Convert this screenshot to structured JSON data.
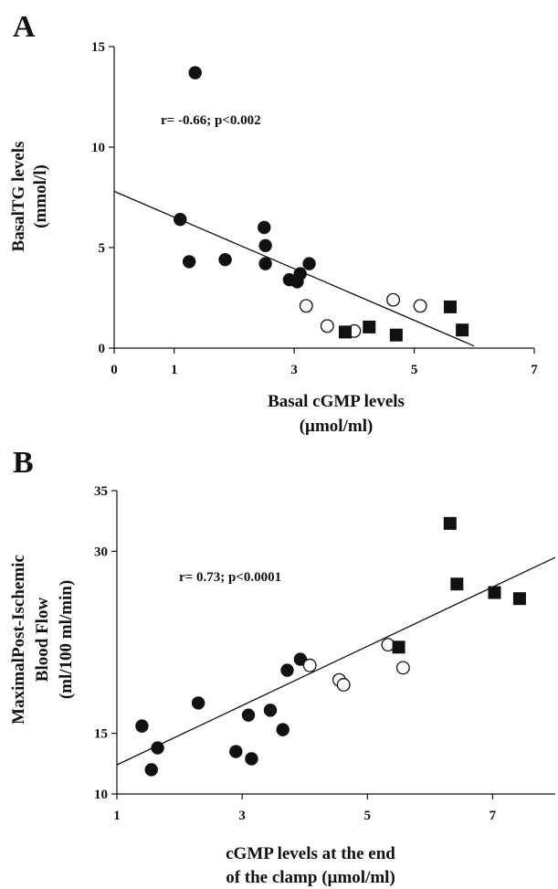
{
  "colors": {
    "ink": "#111111",
    "background": "#ffffff",
    "open_fill": "#ffffff"
  },
  "chart_data": [
    {
      "type": "scatter",
      "panel_label": "A",
      "xlabel": [
        "Basal  cGMP levels",
        "(µmol/ml)"
      ],
      "ylabel": [
        "BasalTG levels",
        "(mmol/l)"
      ],
      "xlim": [
        0,
        7
      ],
      "ylim": [
        0,
        15
      ],
      "x_ticks": [
        0,
        1,
        3,
        5,
        7
      ],
      "y_ticks": [
        0,
        5,
        10,
        15
      ],
      "annotation": "r= -0.66; p<0.002",
      "grid": false,
      "legend": "none",
      "series": [
        {
          "marker": "filled-circle",
          "points": [
            [
              1.35,
              13.7
            ],
            [
              1.1,
              6.4
            ],
            [
              1.25,
              4.3
            ],
            [
              1.85,
              4.4
            ],
            [
              2.5,
              6.0
            ],
            [
              2.52,
              5.1
            ],
            [
              2.52,
              4.2
            ],
            [
              2.92,
              3.4
            ],
            [
              3.05,
              3.3
            ],
            [
              3.1,
              3.7
            ],
            [
              3.25,
              4.2
            ]
          ]
        },
        {
          "marker": "open-circle",
          "points": [
            [
              3.2,
              2.1
            ],
            [
              3.55,
              1.1
            ],
            [
              4.0,
              0.85
            ],
            [
              4.65,
              2.4
            ],
            [
              5.1,
              2.1
            ]
          ]
        },
        {
          "marker": "filled-square",
          "points": [
            [
              3.85,
              0.8
            ],
            [
              4.25,
              1.05
            ],
            [
              4.7,
              0.65
            ],
            [
              5.6,
              2.05
            ],
            [
              5.8,
              0.9
            ]
          ]
        }
      ],
      "fit_line": {
        "x": [
          0,
          6.0
        ],
        "y": [
          7.8,
          0.1
        ]
      }
    },
    {
      "type": "scatter",
      "panel_label": "B",
      "xlabel": [
        "cGMP levels at the end",
        "of the clamp (µmol/ml)"
      ],
      "ylabel": [
        "MaximalPost-Ischemic",
        "Blood Flow",
        "(ml/100 ml/min)"
      ],
      "xlim": [
        1,
        8
      ],
      "ylim": [
        10,
        35
      ],
      "x_ticks": [
        1,
        3,
        5,
        7
      ],
      "y_ticks": [
        10,
        15,
        30,
        35
      ],
      "annotation": "r= 0.73; p<0.0001",
      "grid": false,
      "legend": "none",
      "series": [
        {
          "marker": "filled-circle",
          "points": [
            [
              1.4,
              15.6
            ],
            [
              1.65,
              13.8
            ],
            [
              1.55,
              12.0
            ],
            [
              2.3,
              17.5
            ],
            [
              2.9,
              13.5
            ],
            [
              3.1,
              16.5
            ],
            [
              3.15,
              12.9
            ],
            [
              3.45,
              16.9
            ],
            [
              3.65,
              15.3
            ],
            [
              3.72,
              20.2
            ],
            [
              3.93,
              21.1
            ]
          ]
        },
        {
          "marker": "open-circle",
          "points": [
            [
              4.08,
              20.6
            ],
            [
              4.55,
              19.4
            ],
            [
              4.62,
              19.0
            ],
            [
              5.33,
              22.3
            ],
            [
              5.57,
              20.4
            ]
          ]
        },
        {
          "marker": "filled-square",
          "points": [
            [
              5.5,
              22.1
            ],
            [
              6.32,
              32.3
            ],
            [
              6.43,
              27.3
            ],
            [
              7.03,
              26.6
            ],
            [
              7.43,
              26.1
            ]
          ]
        }
      ],
      "fit_line": {
        "x": [
          1,
          8
        ],
        "y": [
          12.4,
          29.5
        ]
      }
    }
  ]
}
